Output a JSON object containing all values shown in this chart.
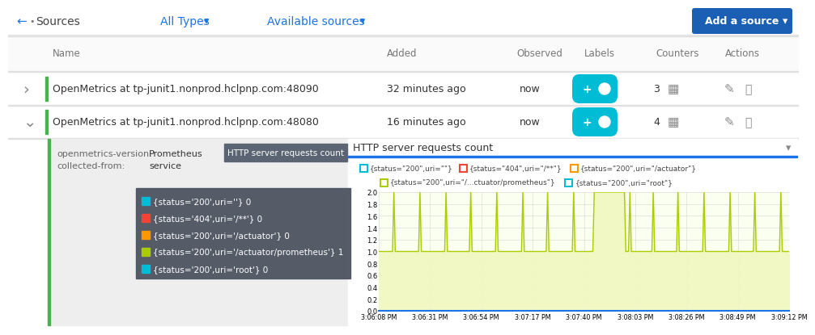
{
  "bg_color": "#ffffff",
  "nav_text_color": "#1a73e8",
  "add_btn_bg": "#1a5fb4",
  "add_btn_text_color": "#ffffff",
  "table_header_color": "#777777",
  "row1_name": "OpenMetrics at tp-junit1.nonprod.hclpnp.com:48090",
  "row1_added": "32 minutes ago",
  "row1_observed": "now",
  "row1_labels_count": "3",
  "row2_name": "OpenMetrics at tp-junit1.nonprod.hclpnp.com:48080",
  "row2_added": "16 minutes ago",
  "row2_observed": "now",
  "row2_labels_count": "4",
  "separator_color": "#e0e0e0",
  "green_bar_color": "#4caf50",
  "tab_active_bg": "#5a6472",
  "tab_active_text": "#ffffff",
  "tab_text": "HTTP server requests count",
  "chart_title": "HTTP server requests count",
  "chart_bg": "#fafff0",
  "chart_line_color": "#aacc00",
  "chart_border_color": "#1a73e8",
  "x_labels": [
    "3:06:08 PM",
    "3:06:31 PM",
    "3:06:54 PM",
    "3:07:17 PM",
    "3:07:40 PM",
    "3:08:03 PM",
    "3:08:26 PM",
    "3:08:49 PM",
    "3:09:12 PM"
  ],
  "legend_row1": [
    {
      "label": "{status=\"200\",uri=\"\"}",
      "color": "#00bcd4"
    },
    {
      "label": "{status=\"404\",uri=\"/**\"}",
      "color": "#f44336"
    },
    {
      "label": "{status=\"200\",uri=\"/actuator\"}",
      "color": "#ff9800"
    }
  ],
  "legend_row2": [
    {
      "label": "{status=\"200\",uri=\"/...ctuator/prometheus\"}",
      "color": "#aacc00"
    },
    {
      "label": "{status=\"200\",uri=\"root\"}",
      "color": "#00bcd4"
    }
  ],
  "tooltip_items": [
    {
      "label": "{status='200',uri=''} 0",
      "color": "#00bcd4"
    },
    {
      "label": "{status='404',uri='/**'} 0",
      "color": "#f44336"
    },
    {
      "label": "{status='200',uri='/actuator'} 0",
      "color": "#ff9800"
    },
    {
      "label": "{status='200',uri='/actuator/prometheus'} 1",
      "color": "#aacc00"
    },
    {
      "label": "{status='200',uri='root'} 0",
      "color": "#00bcd4"
    }
  ],
  "chart_fill_color": "#f0f8c0"
}
